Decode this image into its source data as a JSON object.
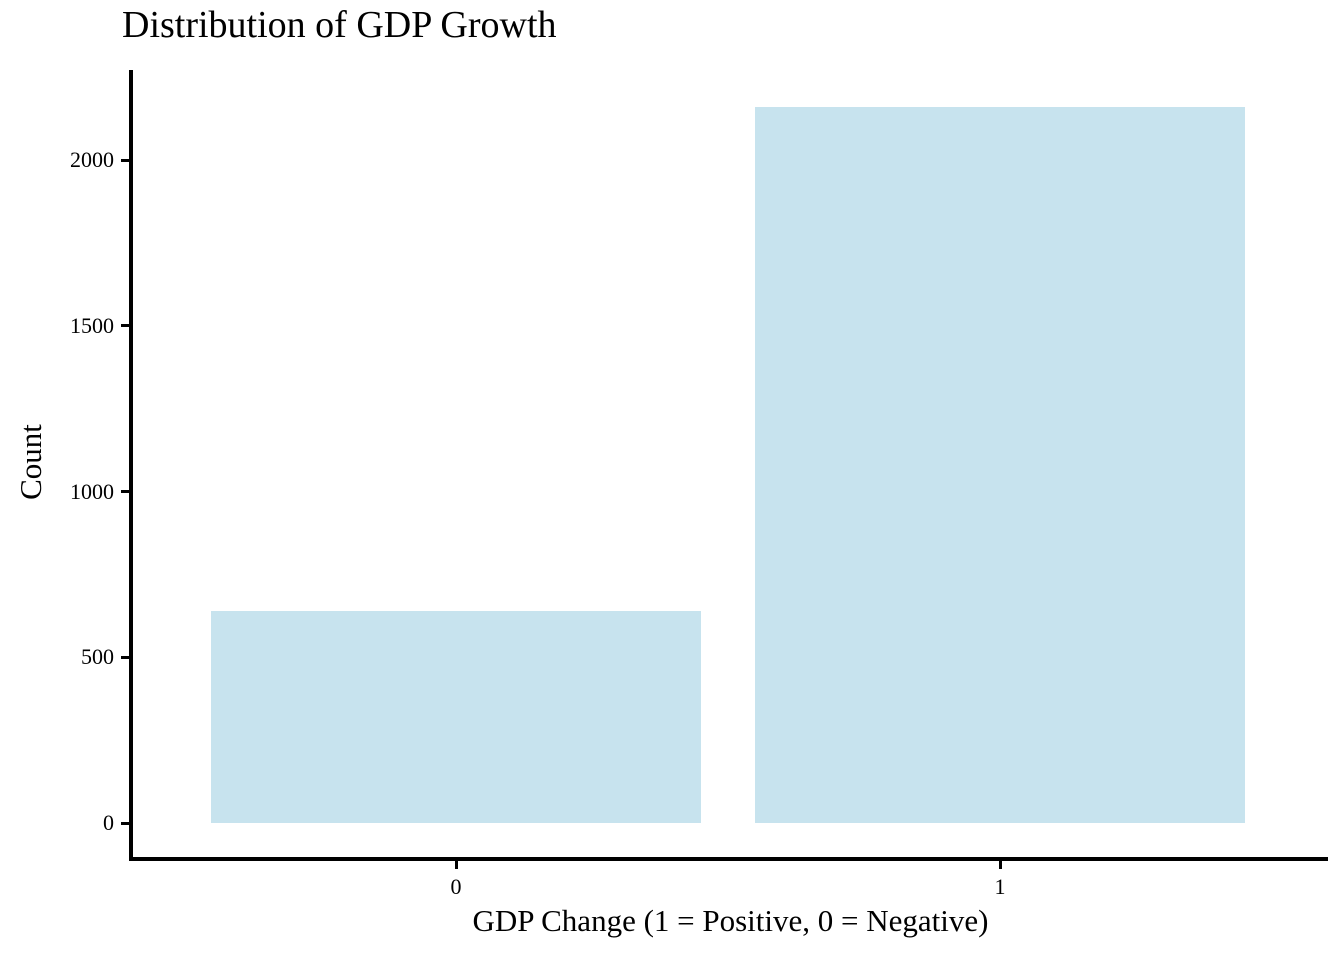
{
  "chart_data": {
    "type": "bar",
    "title": "Distribution of GDP Growth",
    "xlabel": "GDP Change (1 = Positive, 0 = Negative)",
    "ylabel": "Count",
    "categories": [
      "0",
      "1"
    ],
    "values": [
      640,
      2160
    ],
    "yticks": [
      0,
      500,
      1000,
      1500,
      2000
    ],
    "ylim": [
      0,
      2270
    ],
    "bar_color": "#C7E3EE",
    "axis_color": "#000000",
    "background_color": "#FFFFFF",
    "grid": false,
    "legend": false
  }
}
